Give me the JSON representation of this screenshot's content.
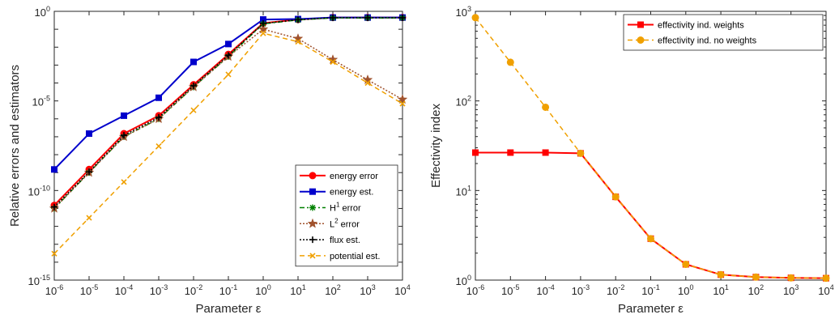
{
  "chart_data": [
    {
      "type": "line",
      "xscale": "log",
      "yscale": "log",
      "x": [
        "1e-6",
        "1e-5",
        "1e-4",
        "1e-3",
        "1e-2",
        "1e-1",
        "1e0",
        "1e1",
        "1e2",
        "1e3",
        "1e4"
      ],
      "xlim": [
        1e-06,
        10000.0
      ],
      "ylim": [
        1e-15,
        1
      ],
      "xlabel": "Parameter ε",
      "ylabel": "Relative errors and estimators",
      "grid": false,
      "legend_position": "bottom-right",
      "xticks": [
        {
          "base": "10",
          "exp": "-6"
        },
        {
          "base": "10",
          "exp": "-5"
        },
        {
          "base": "10",
          "exp": "-4"
        },
        {
          "base": "10",
          "exp": "-3"
        },
        {
          "base": "10",
          "exp": "-2"
        },
        {
          "base": "10",
          "exp": "-1"
        },
        {
          "base": "10",
          "exp": "0"
        },
        {
          "base": "10",
          "exp": "1"
        },
        {
          "base": "10",
          "exp": "2"
        },
        {
          "base": "10",
          "exp": "3"
        },
        {
          "base": "10",
          "exp": "4"
        }
      ],
      "yticks": [
        {
          "base": "10",
          "exp": "-15"
        },
        {
          "base": "10",
          "exp": "-10"
        },
        {
          "base": "10",
          "exp": "-5"
        },
        {
          "base": "10",
          "exp": "0"
        }
      ],
      "series": [
        {
          "name": "energy error",
          "color": "#ff0000",
          "marker": "circle",
          "line": "solid",
          "values": [
            1.5e-11,
            1.5e-09,
            1.5e-07,
            1.5e-06,
            8e-05,
            0.004,
            0.22,
            0.35,
            0.45,
            0.45,
            0.45
          ]
        },
        {
          "name": "energy est.",
          "color": "#0000cc",
          "marker": "square",
          "line": "solid",
          "values": [
            1.5e-09,
            1.5e-07,
            1.5e-06,
            1.5e-05,
            0.0015,
            0.015,
            0.35,
            0.37,
            0.45,
            0.45,
            0.45
          ]
        },
        {
          "name": "H",
          "sup": "1",
          "suffix": " error",
          "color": "#008000",
          "marker": "asterisk",
          "line": "dashdot",
          "values": [
            1e-11,
            1e-09,
            1e-07,
            1e-06,
            6e-05,
            0.003,
            0.2,
            0.33,
            0.43,
            0.43,
            0.43
          ]
        },
        {
          "name": "L",
          "sup": "2",
          "suffix": " error",
          "color": "#a0522d",
          "marker": "star",
          "line": "dotted",
          "values": [
            1e-11,
            1e-09,
            1e-07,
            1e-06,
            6e-05,
            0.003,
            0.1,
            0.03,
            0.002,
            0.00015,
            1.2e-05
          ]
        },
        {
          "name": "flux est.",
          "color": "#000000",
          "marker": "plus",
          "line": "dotted",
          "values": [
            1.2e-11,
            1.1e-09,
            1.2e-07,
            1.2e-06,
            7e-05,
            0.0035,
            0.21,
            0.34,
            0.44,
            0.44,
            0.44
          ]
        },
        {
          "name": "potential est.",
          "color": "#f0a000",
          "marker": "x",
          "line": "dashed",
          "values": [
            3e-14,
            3e-12,
            3e-10,
            3e-08,
            3e-06,
            0.0003,
            0.06,
            0.02,
            0.0015,
            0.0001,
            7e-06
          ]
        }
      ]
    },
    {
      "type": "line",
      "xscale": "log",
      "yscale": "log",
      "x": [
        "1e-6",
        "1e-5",
        "1e-4",
        "1e-3",
        "1e-2",
        "1e-1",
        "1e0",
        "1e1",
        "1e2",
        "1e3",
        "1e4"
      ],
      "xlim": [
        1e-06,
        10000.0
      ],
      "ylim": [
        1,
        1000
      ],
      "xlabel": "Parameter ε",
      "ylabel": "Effectivity index",
      "grid": false,
      "legend_position": "top-right",
      "xticks": [
        {
          "base": "10",
          "exp": "-6"
        },
        {
          "base": "10",
          "exp": "-5"
        },
        {
          "base": "10",
          "exp": "-4"
        },
        {
          "base": "10",
          "exp": "-3"
        },
        {
          "base": "10",
          "exp": "-2"
        },
        {
          "base": "10",
          "exp": "-1"
        },
        {
          "base": "10",
          "exp": "0"
        },
        {
          "base": "10",
          "exp": "1"
        },
        {
          "base": "10",
          "exp": "2"
        },
        {
          "base": "10",
          "exp": "3"
        },
        {
          "base": "10",
          "exp": "4"
        }
      ],
      "yticks": [
        {
          "base": "10",
          "exp": "0"
        },
        {
          "base": "10",
          "exp": "1"
        },
        {
          "base": "10",
          "exp": "2"
        },
        {
          "base": "10",
          "exp": "3"
        }
      ],
      "series": [
        {
          "name": "effectivity ind. weights",
          "color": "#ff0000",
          "marker": "square",
          "line": "solid",
          "values": [
            26.5,
            26.5,
            26.5,
            26.0,
            8.5,
            2.9,
            1.5,
            1.15,
            1.08,
            1.06,
            1.05
          ]
        },
        {
          "name": "effectivity ind. no weights",
          "color": "#f0a000",
          "marker": "circle",
          "line": "dashed",
          "values": [
            850,
            270,
            85,
            26.0,
            8.5,
            2.9,
            1.5,
            1.15,
            1.08,
            1.06,
            1.05
          ]
        }
      ]
    }
  ]
}
